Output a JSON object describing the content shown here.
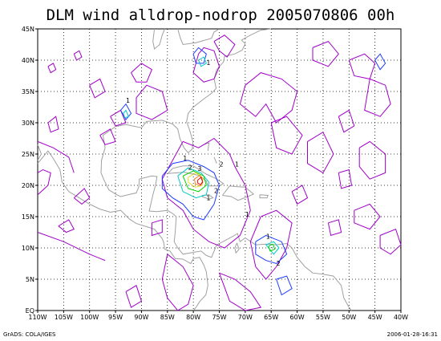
{
  "title": "DLM wind alldrop-nodrop 2005070806 00h",
  "footer_left": "GrADS: COLA/IGES",
  "footer_right": "2006-01-28-16:31",
  "map": {
    "lon_range": [
      -110,
      -40
    ],
    "lat_range": [
      0,
      45
    ],
    "lat_labels": [
      "EQ",
      "5N",
      "10N",
      "15N",
      "20N",
      "25N",
      "30N",
      "35N",
      "40N",
      "45N"
    ],
    "lon_labels": [
      "110W",
      "105W",
      "100W",
      "95W",
      "90W",
      "85W",
      "80W",
      "75W",
      "70W",
      "65W",
      "60W",
      "55W",
      "50W",
      "45W",
      "40W"
    ],
    "contour_label_values": [
      "1",
      "1",
      "2",
      "2",
      "3",
      "2",
      "1",
      "1",
      "1",
      "2",
      "1",
      "1"
    ],
    "colors": {
      "coast": "#a0a0a0",
      "contour_1": "#a000c8",
      "contour_2": "#1e3cff",
      "contour_3": "#00c8c8",
      "contour_4": "#00d200",
      "contour_5": "#e6dc32",
      "contour_6": "#f08228",
      "contour_7": "#e60000"
    }
  }
}
